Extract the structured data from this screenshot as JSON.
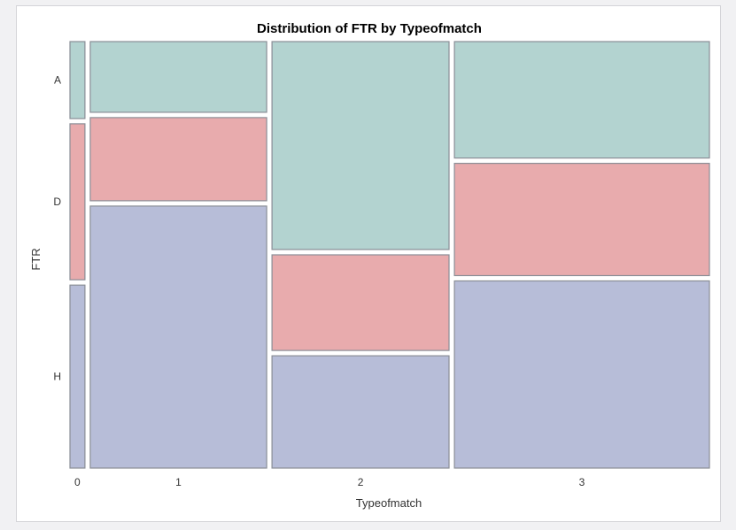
{
  "chart_data": {
    "type": "mosaic",
    "title": "Distribution of FTR by Typeofmatch",
    "xlabel": "Typeofmatch",
    "ylabel": "FTR",
    "categories": [
      "0",
      "1",
      "2",
      "3"
    ],
    "column_widths": [
      0.024,
      0.283,
      0.284,
      0.409
    ],
    "series": [
      {
        "name": "H",
        "values": [
          0.44,
          0.63,
          0.27,
          0.45
        ]
      },
      {
        "name": "D",
        "values": [
          0.375,
          0.2,
          0.23,
          0.27
        ]
      },
      {
        "name": "A",
        "values": [
          0.185,
          0.17,
          0.5,
          0.28
        ]
      }
    ],
    "colors": {
      "A": "#b3d3d0",
      "D": "#e8abad",
      "H": "#b7bdd8"
    },
    "stroke": "#8a8e96",
    "legend": "none"
  }
}
